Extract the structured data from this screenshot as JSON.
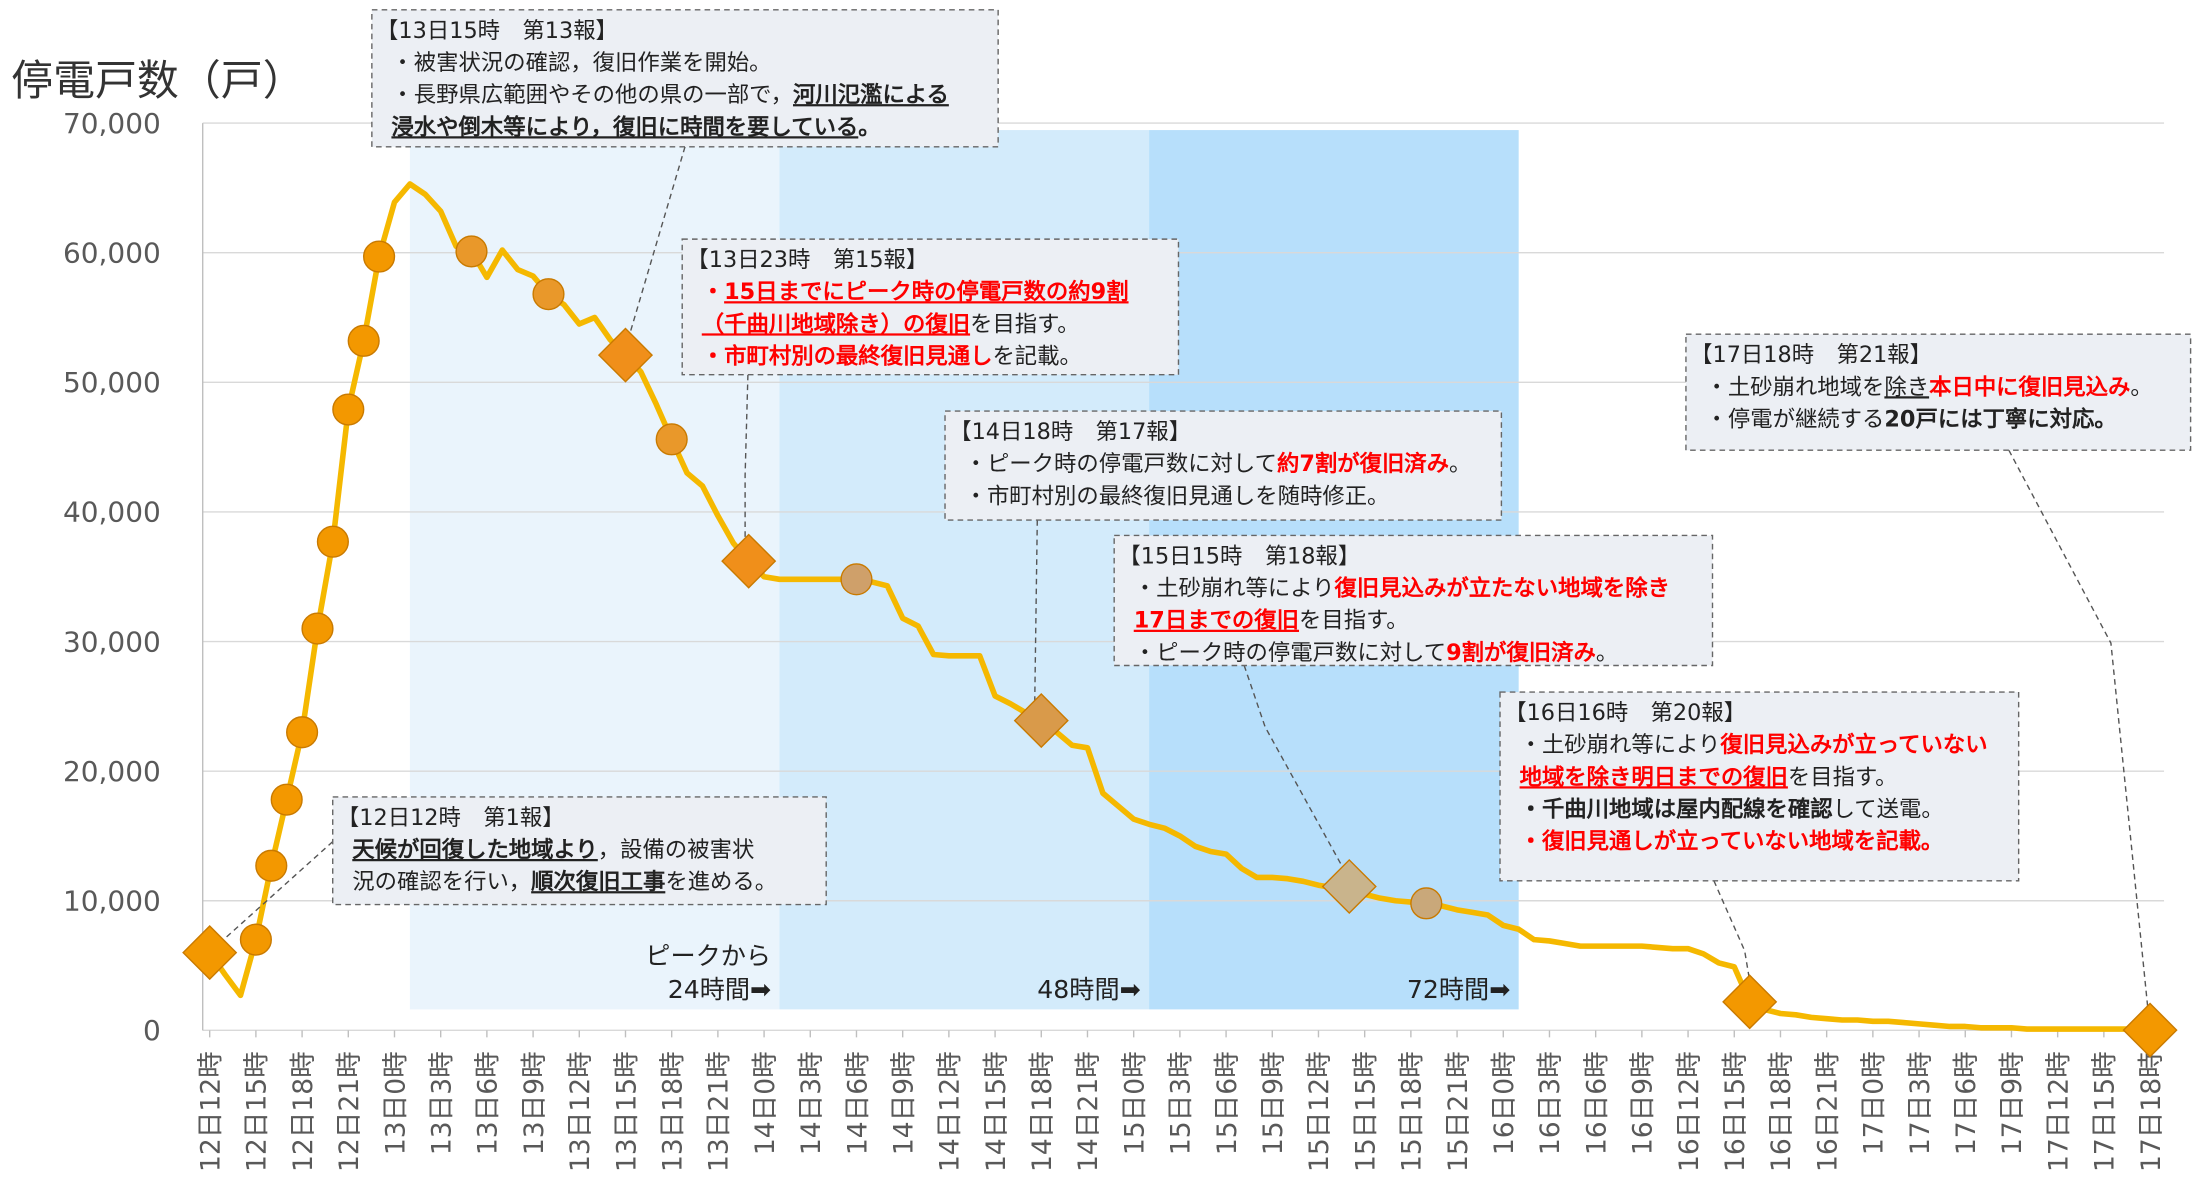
{
  "chart_data": {
    "type": "line",
    "y_label": "停電戸数（戸）",
    "ylim": [
      0,
      70000
    ],
    "yticks": [
      {
        "value": 0,
        "label": "0"
      },
      {
        "value": 10000,
        "label": "10,000"
      },
      {
        "value": 20000,
        "label": "20,000"
      },
      {
        "value": 30000,
        "label": "30,000"
      },
      {
        "value": 40000,
        "label": "40,000"
      },
      {
        "value": 50000,
        "label": "50,000"
      },
      {
        "value": 60000,
        "label": "60,000"
      },
      {
        "value": 70000,
        "label": "70,000"
      }
    ],
    "grid": true,
    "categories": [
      "12日12時",
      null,
      null,
      "12日15時",
      null,
      null,
      "12日18時",
      null,
      null,
      "12日21時",
      null,
      null,
      "13日0時",
      null,
      null,
      "13日3時",
      null,
      null,
      "13日6時",
      null,
      null,
      "13日9時",
      null,
      null,
      "13日12時",
      null,
      null,
      "13日15時",
      null,
      null,
      "13日18時",
      null,
      null,
      "13日21時",
      null,
      null,
      "14日0時",
      null,
      null,
      "14日3時",
      null,
      null,
      "14日6時",
      null,
      null,
      "14日9時",
      null,
      null,
      "14日12時",
      null,
      null,
      "14日15時",
      null,
      null,
      "14日18時",
      null,
      null,
      "14日21時",
      null,
      null,
      "15日0時",
      null,
      null,
      "15日3時",
      null,
      null,
      "15日6時",
      null,
      null,
      "15日9時",
      null,
      null,
      "15日12時",
      null,
      null,
      "15日15時",
      null,
      null,
      "15日18時",
      null,
      null,
      "15日21時",
      null,
      null,
      "16日0時",
      null,
      null,
      "16日3時",
      null,
      null,
      "16日6時",
      null,
      null,
      "16日9時",
      null,
      null,
      "16日12時",
      null,
      null,
      "16日15時",
      null,
      null,
      "16日18時",
      null,
      null,
      "16日21時",
      null,
      null,
      "17日0時",
      null,
      null,
      "17日3時",
      null,
      null,
      "17日6時",
      null,
      null,
      "17日9時",
      null,
      null,
      "17日12時",
      null,
      null,
      "17日15時",
      null,
      null,
      "17日18時"
    ],
    "series": [
      {
        "color": "#f5b800",
        "values": [
          6000,
          4300,
          2700,
          7000,
          12700,
          17800,
          23000,
          31000,
          37700,
          47900,
          53200,
          59700,
          63900,
          65300,
          64500,
          63200,
          60500,
          60100,
          58100,
          60200,
          58700,
          58200,
          56800,
          56000,
          54500,
          55000,
          53300,
          52100,
          50800,
          48300,
          45600,
          43000,
          42000,
          39700,
          37600,
          36200,
          35000,
          34800,
          34800,
          34800,
          34800,
          34800,
          34800,
          34600,
          34300,
          31800,
          31200,
          29000,
          28900,
          28900,
          28900,
          25800,
          25200,
          24500,
          23900,
          23000,
          22000,
          21800,
          18300,
          17300,
          16300,
          15900,
          15600,
          15000,
          14200,
          13800,
          13600,
          12500,
          11800,
          11800,
          11700,
          11500,
          11200,
          11000,
          11100,
          10500,
          10200,
          10000,
          9900,
          9800,
          9600,
          9300,
          9100,
          8900,
          8100,
          7800,
          7000,
          6900,
          6700,
          6500,
          6500,
          6500,
          6500,
          6500,
          6400,
          6300,
          6300,
          5900,
          5200,
          4900,
          2200,
          1600,
          1300,
          1200,
          1000,
          900,
          800,
          800,
          700,
          700,
          600,
          500,
          400,
          300,
          300,
          200,
          200,
          200,
          100,
          100,
          100,
          100,
          100,
          100,
          100,
          100,
          20
        ],
        "markers": [
          {
            "at": 0,
            "shape": "diamond",
            "color": "#f39800"
          },
          {
            "at": 3,
            "shape": "circle",
            "color": "#f39800"
          },
          {
            "at": 4,
            "shape": "circle",
            "color": "#f39800"
          },
          {
            "at": 5,
            "shape": "circle",
            "color": "#f39800"
          },
          {
            "at": 6,
            "shape": "circle",
            "color": "#f39800"
          },
          {
            "at": 7,
            "shape": "circle",
            "color": "#f39800"
          },
          {
            "at": 8,
            "shape": "circle",
            "color": "#f39800"
          },
          {
            "at": 9,
            "shape": "circle",
            "color": "#f39800"
          },
          {
            "at": 10,
            "shape": "circle",
            "color": "#f39800"
          },
          {
            "at": 11,
            "shape": "circle",
            "color": "#f39800"
          },
          {
            "at": 17,
            "shape": "circle",
            "color": "#e9982a"
          },
          {
            "at": 22,
            "shape": "circle",
            "color": "#e9982a"
          },
          {
            "at": 27,
            "shape": "diamond",
            "color": "#f08f1a"
          },
          {
            "at": 30,
            "shape": "circle",
            "color": "#e9982a"
          },
          {
            "at": 35,
            "shape": "diamond",
            "color": "#f08f1a"
          },
          {
            "at": 42,
            "shape": "circle",
            "color": "#cfa06a"
          },
          {
            "at": 54,
            "shape": "diamond",
            "color": "#d99a4a"
          },
          {
            "at": 74,
            "shape": "diamond",
            "color": "#c9b48c"
          },
          {
            "at": 79,
            "shape": "circle",
            "color": "#c9a87a"
          },
          {
            "at": 100,
            "shape": "diamond",
            "color": "#f39800"
          },
          {
            "at": 126,
            "shape": "diamond",
            "color": "#f39800"
          }
        ]
      }
    ],
    "bands": [
      {
        "start": 13,
        "end": 37,
        "color": "#eaf4fc",
        "label": [
          "ピークから",
          "24時間➡"
        ]
      },
      {
        "start": 37,
        "end": 61,
        "color": "#d3ebfb",
        "label": [
          "48時間➡"
        ]
      },
      {
        "start": 61,
        "end": 85,
        "color": "#b7dffb",
        "label": [
          "72時間➡"
        ]
      }
    ],
    "annotations": [
      {
        "title": "【12日12時　第1報】",
        "lines": [
          [
            {
              "text": "天候が回復した地域より",
              "bold": true,
              "underline": true
            },
            "，設備の被害状"
          ],
          [
            "況の確認を行い，",
            {
              "text": "順次復旧工事",
              "bold": true,
              "underline": true
            },
            "を進める。"
          ]
        ]
      },
      {
        "title": "【13日15時　第13報】",
        "lines": [
          [
            "・被害状況の確認，復旧作業を開始。"
          ],
          [
            "・長野県広範囲やその他の県の一部で，",
            {
              "text": "河川氾濫による",
              "bold": true,
              "underline": true
            }
          ],
          [
            {
              "text": "浸水や倒木等により，復旧に時間を要している",
              "bold": true,
              "underline": true
            },
            {
              "text": "。",
              "bold": true
            }
          ]
        ]
      },
      {
        "title": "【13日23時　第15報】",
        "lines": [
          [
            {
              "text": "・",
              "bold": true,
              "red": true
            },
            {
              "text": "15日までにピーク時の停電戸数の約9割",
              "bold": true,
              "red": true,
              "underline": true
            }
          ],
          [
            {
              "text": "（千曲川地域除き）の復旧",
              "bold": true,
              "red": true,
              "underline": true
            },
            "を目指す。"
          ],
          [
            {
              "text": "・市町村別の最終復旧見通し",
              "bold": true,
              "red": true
            },
            "を記載。"
          ]
        ]
      },
      {
        "title": "【14日18時　第17報】",
        "lines": [
          [
            "・ピーク時の停電戸数に対して",
            {
              "text": "約7割が復旧済み",
              "bold": true,
              "red": true
            },
            "。"
          ],
          [
            "・市町村別の最終復旧見通しを随時修正。"
          ]
        ]
      },
      {
        "title": "【15日15時　第18報】",
        "lines": [
          [
            "・土砂崩れ等により",
            {
              "text": "復旧見込みが立たない地域を除き",
              "bold": true,
              "red": true
            }
          ],
          [
            {
              "text": "17日までの復旧",
              "bold": true,
              "red": true,
              "underline": true
            },
            "を目指す。"
          ],
          [
            "・ピーク時の停電戸数に対して",
            {
              "text": "9割が復旧済み",
              "bold": true,
              "red": true
            },
            "。"
          ]
        ]
      },
      {
        "title": "【16日16時　第20報】",
        "lines": [
          [
            "・土砂崩れ等により",
            {
              "text": "復旧見込みが立っていない",
              "bold": true,
              "red": true
            }
          ],
          [
            {
              "text": "地域を除き明日までの復旧",
              "bold": true,
              "red": true,
              "underline": true
            },
            "を目指す。"
          ],
          [
            {
              "text": "・千曲川地域は屋内配線を確認",
              "bold": true
            },
            "して送電。"
          ],
          [
            {
              "text": "・復旧見通しが立っていない地域を記載。",
              "bold": true,
              "red": true
            }
          ]
        ]
      },
      {
        "title": "【17日18時　第21報】",
        "lines": [
          [
            "・土砂崩れ地域を",
            {
              "text": "除き",
              "underline": true
            },
            {
              "text": "本日中に復旧見込み",
              "bold": true,
              "red": true
            },
            "。"
          ],
          [
            "・停電が継続する",
            {
              "text": "20戸には丁寧に対応",
              "bold": true
            },
            {
              "text": "。",
              "bold": true
            }
          ]
        ]
      }
    ]
  }
}
